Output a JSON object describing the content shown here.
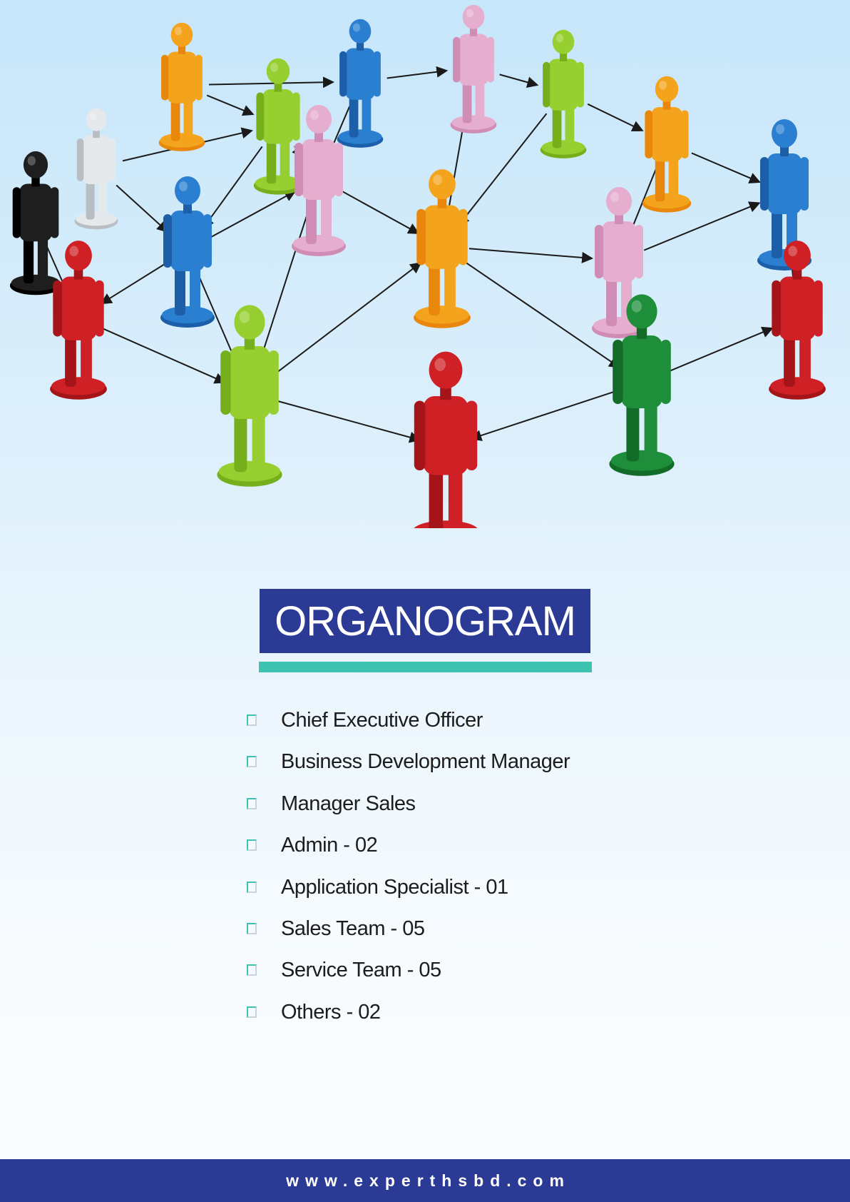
{
  "illustration": {
    "subject": "people-network-icon"
  },
  "title": "ORGANOGRAM",
  "items": [
    "Chief Executive Officer",
    "Business Development Manager",
    "Manager Sales",
    "Admin - 02",
    "Application Specialist - 01",
    "Sales Team - 05",
    "Service Team - 05",
    "Others - 02"
  ],
  "footer": {
    "url": "www.experthsbd.com"
  },
  "colors": {
    "navy": "#2a3a95",
    "teal": "#3ec3b0"
  }
}
